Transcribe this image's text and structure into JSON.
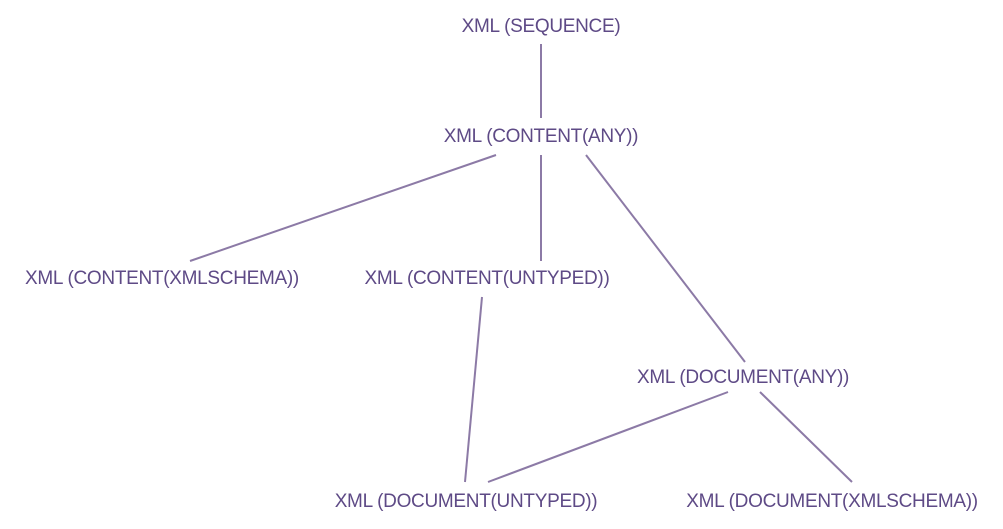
{
  "diagram": {
    "nodes": {
      "xml_sequence": "XML (SEQUENCE)",
      "xml_content_any": "XML (CONTENT(ANY))",
      "xml_content_xmlschema": "XML (CONTENT(XMLSCHEMA))",
      "xml_content_untyped": "XML (CONTENT(UNTYPED))",
      "xml_document_any": "XML (DOCUMENT(ANY))",
      "xml_document_untyped": "XML (DOCUMENT(UNTYPED))",
      "xml_document_xmlschema": "XML (DOCUMENT(XMLSCHEMA))"
    },
    "colors": {
      "text": "#5e4a86",
      "lines": "#8c7aa6",
      "background": "#ffffff"
    }
  }
}
